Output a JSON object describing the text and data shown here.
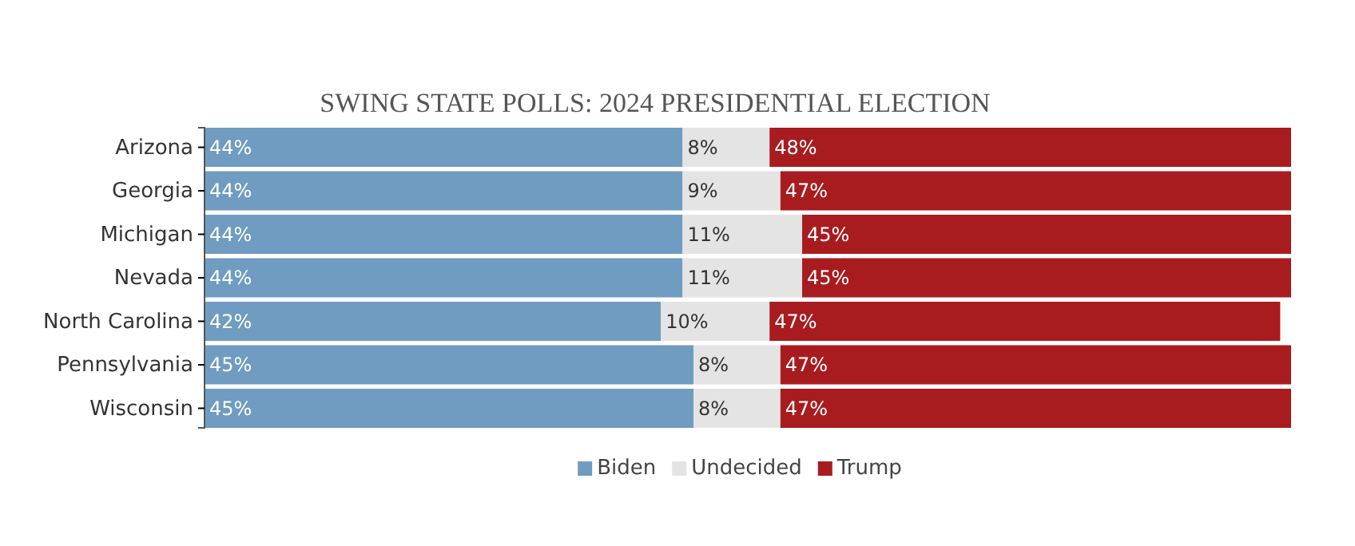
{
  "chart_data": {
    "type": "bar",
    "orientation": "horizontal",
    "stacked": true,
    "title": "SWING STATE POLLS: 2024 PRESIDENTIAL ELECTION",
    "categories": [
      "Arizona",
      "Georgia",
      "Michigan",
      "Nevada",
      "North Carolina",
      "Pennsylvania",
      "Wisconsin"
    ],
    "series": [
      {
        "name": "Biden",
        "color": "#6f9cc0",
        "values": [
          44,
          44,
          44,
          44,
          42,
          45,
          45
        ],
        "value_labels": [
          "44%",
          "44%",
          "44%",
          "44%",
          "42%",
          "45%",
          "45%"
        ]
      },
      {
        "name": "Undecided",
        "color": "#e4e4e4",
        "values": [
          8,
          9,
          11,
          11,
          10,
          8,
          8
        ],
        "value_labels": [
          "8%",
          "9%",
          "11%",
          "11%",
          "10%",
          "8%",
          "8%"
        ]
      },
      {
        "name": "Trump",
        "color": "#a81c1f",
        "values": [
          48,
          47,
          45,
          45,
          47,
          47,
          47
        ],
        "value_labels": [
          "48%",
          "47%",
          "45%",
          "45%",
          "47%",
          "47%",
          "47%"
        ]
      }
    ],
    "tick_labels": "y",
    "legend": "bottom"
  }
}
